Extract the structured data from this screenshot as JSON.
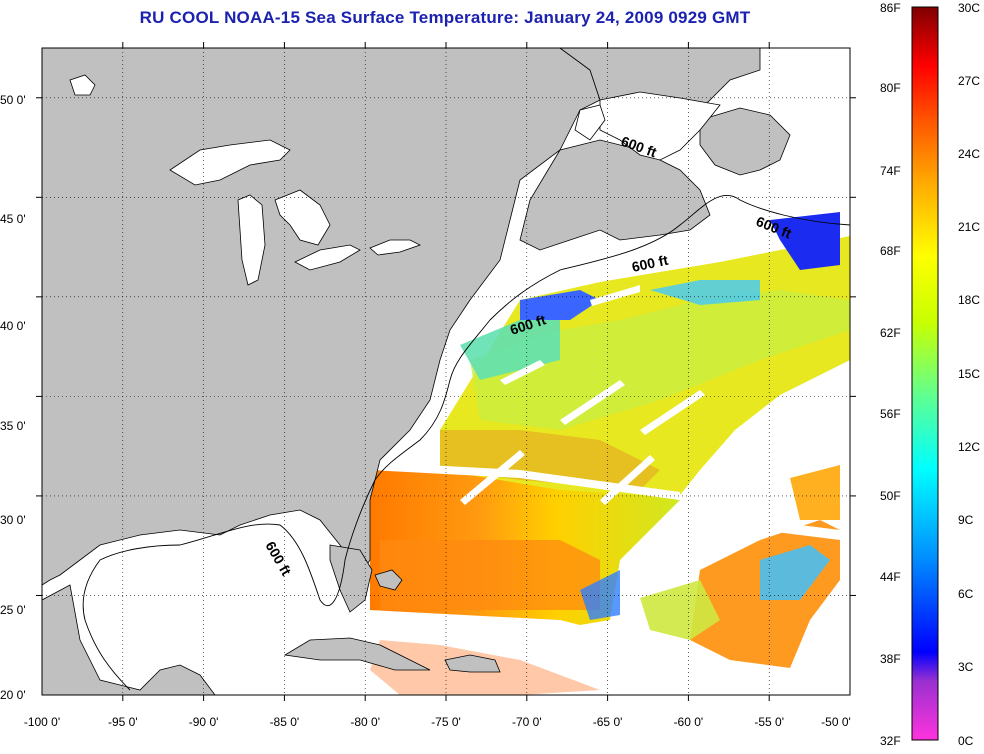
{
  "title": "RU COOL  NOAA-15  Sea Surface Temperature:  January 24, 2009 0929 GMT",
  "map": {
    "lon_range": [
      -100,
      -50
    ],
    "lat_range": [
      20,
      52.5
    ],
    "x_tick_labels": [
      "-100 0'",
      "-95 0'",
      "-90 0'",
      "-85 0'",
      "-80 0'",
      "-75 0'",
      "-70 0'",
      "-65 0'",
      "-60 0'",
      "-55 0'",
      "-50 0'"
    ],
    "y_tick_labels": [
      "50 0'",
      "45 0'",
      "40 0'",
      "35 0'",
      "30 0'",
      "25 0'",
      "20 0'"
    ],
    "grid": "dotted",
    "land_color": "#c0c0c0",
    "nodata_color": "#ffffff",
    "isobath_labels": [
      "600 ft",
      "600 ft",
      "600 ft",
      "600 ft",
      "600 ft"
    ]
  },
  "colorbar": {
    "fahrenheit_labels": [
      "86F",
      "80F",
      "74F",
      "68F",
      "62F",
      "56F",
      "50F",
      "44F",
      "38F",
      "32F"
    ],
    "celsius_labels": [
      "30C",
      "27C",
      "24C",
      "21C",
      "18C",
      "15C",
      "12C",
      "9C",
      "6C",
      "3C",
      "0C"
    ],
    "range_c": [
      0,
      30
    ],
    "colors": [
      "#ff33cc",
      "#9933cc",
      "#0000ff",
      "#0099ff",
      "#00ffff",
      "#66ff99",
      "#ccff00",
      "#ffff00",
      "#ffaa00",
      "#ff5500",
      "#ff0000",
      "#aa0000",
      "#7f0000"
    ]
  }
}
